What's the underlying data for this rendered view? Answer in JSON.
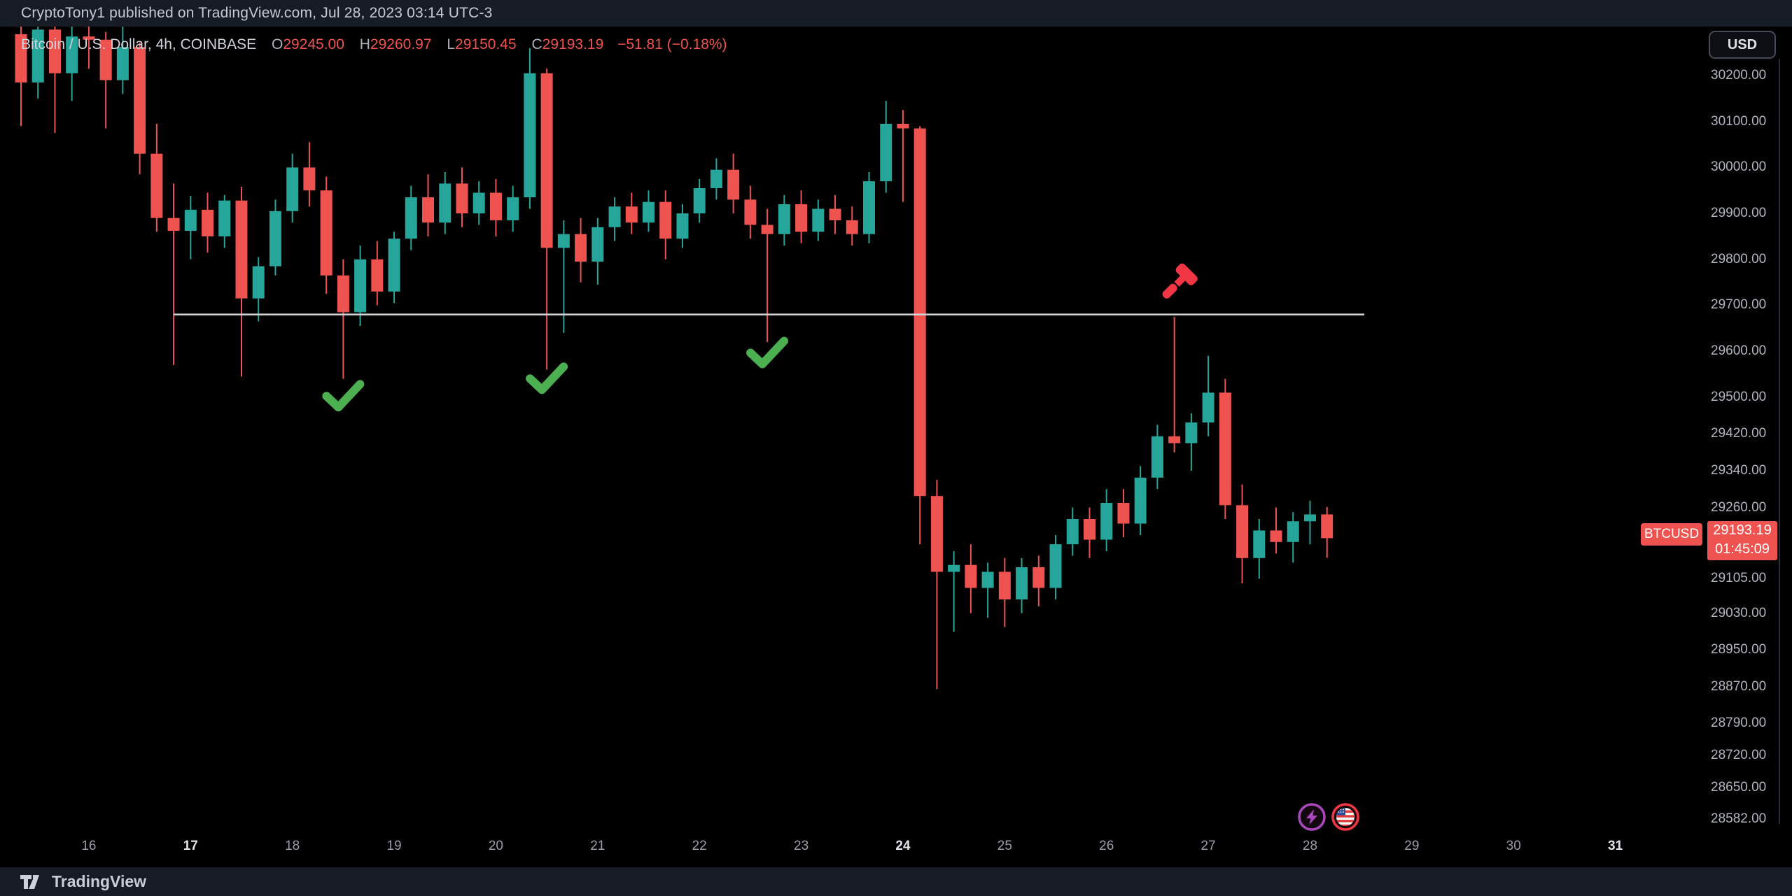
{
  "header": {
    "published_line": "CryptoTony1 published on TradingView.com, Jul 28, 2023 03:14 UTC-3"
  },
  "legend": {
    "symbol": "Bitcoin / U.S. Dollar",
    "interval": "4h",
    "exchange": "COINBASE",
    "symbol_line": "Bitcoin / U.S. Dollar, 4h, COINBASE",
    "open_label": "O",
    "open": "29245.00",
    "high_label": "H",
    "high": "29260.97",
    "low_label": "L",
    "low": "29150.45",
    "close_label": "C",
    "close": "29193.19",
    "change": "−51.81 (−0.18%)"
  },
  "price_axis": {
    "currency": "USD",
    "ticks": [
      30200.0,
      30100.0,
      30000.0,
      29900.0,
      29800.0,
      29700.0,
      29600.0,
      29500.0,
      29420.0,
      29340.0,
      29260.0,
      29105.0,
      29030.0,
      28950.0,
      28870.0,
      28790.0,
      28720.0,
      28650.0,
      28582.0
    ],
    "tick_format": "0.00",
    "last_price_tag": {
      "symbol": "BTCUSD",
      "price": "29193.19",
      "countdown": "01:45:09"
    }
  },
  "time_axis": {
    "ticks": [
      {
        "label": "16",
        "index": 4,
        "bold": false
      },
      {
        "label": "17",
        "index": 10,
        "bold": true
      },
      {
        "label": "18",
        "index": 16,
        "bold": false
      },
      {
        "label": "19",
        "index": 22,
        "bold": false
      },
      {
        "label": "20",
        "index": 28,
        "bold": false
      },
      {
        "label": "21",
        "index": 34,
        "bold": false
      },
      {
        "label": "22",
        "index": 40,
        "bold": false
      },
      {
        "label": "23",
        "index": 46,
        "bold": false
      },
      {
        "label": "24",
        "index": 52,
        "bold": true
      },
      {
        "label": "25",
        "index": 58,
        "bold": false
      },
      {
        "label": "26",
        "index": 64,
        "bold": false
      },
      {
        "label": "27",
        "index": 70,
        "bold": false
      },
      {
        "label": "28",
        "index": 76,
        "bold": false
      },
      {
        "label": "29",
        "index": 82,
        "bold": false
      },
      {
        "label": "30",
        "index": 88,
        "bold": false
      },
      {
        "label": "31",
        "index": 94,
        "bold": true
      }
    ],
    "events": [
      {
        "icon": "lightning-event-icon",
        "index": 76.1,
        "color": "#ab47bc"
      },
      {
        "icon": "us-flag-event-icon",
        "index": 78.1,
        "color": "#f23645"
      }
    ]
  },
  "footer": {
    "brand": "TradingView"
  },
  "colors": {
    "up": "#26a69a",
    "down": "#ef5350",
    "ray": "#d5d7da",
    "check": "#4caf50",
    "gavel": "#f23645",
    "background": "#000000",
    "bar_background": "#171b26",
    "axis_text": "#b2b5be",
    "tag_background": "#ef5350"
  },
  "chart_data": {
    "type": "candlestick",
    "title": "Bitcoin / U.S. Dollar",
    "exchange": "COINBASE",
    "interval": "4h",
    "date_range": "Jul 15 – Jul 28, 2023 (x-axis extends to Jul 31)",
    "price_range_visible": [
      28582,
      30330
    ],
    "grid": false,
    "ohlc_format": [
      "open",
      "high",
      "low",
      "close"
    ],
    "candles": [
      [
        30290,
        30325,
        30090,
        30185
      ],
      [
        30185,
        30330,
        30150,
        30300
      ],
      [
        30300,
        30315,
        30075,
        30205
      ],
      [
        30205,
        30330,
        30145,
        30285
      ],
      [
        30285,
        30315,
        30215,
        30278
      ],
      [
        30278,
        30295,
        30085,
        30190
      ],
      [
        30190,
        30310,
        30160,
        30262
      ],
      [
        30262,
        30272,
        29985,
        30030
      ],
      [
        30030,
        30095,
        29860,
        29890
      ],
      [
        29890,
        29965,
        29570,
        29862
      ],
      [
        29862,
        29938,
        29800,
        29908
      ],
      [
        29908,
        29945,
        29815,
        29850
      ],
      [
        29850,
        29940,
        29825,
        29928
      ],
      [
        29928,
        29958,
        29545,
        29715
      ],
      [
        29715,
        29805,
        29665,
        29785
      ],
      [
        29785,
        29930,
        29765,
        29905
      ],
      [
        29905,
        30030,
        29880,
        30000
      ],
      [
        30000,
        30055,
        29915,
        29950
      ],
      [
        29950,
        29980,
        29725,
        29765
      ],
      [
        29765,
        29800,
        29540,
        29685
      ],
      [
        29685,
        29830,
        29655,
        29800
      ],
      [
        29800,
        29840,
        29700,
        29730
      ],
      [
        29730,
        29860,
        29705,
        29845
      ],
      [
        29845,
        29960,
        29820,
        29935
      ],
      [
        29935,
        29985,
        29850,
        29880
      ],
      [
        29880,
        29990,
        29855,
        29965
      ],
      [
        29965,
        30000,
        29870,
        29900
      ],
      [
        29900,
        29970,
        29875,
        29945
      ],
      [
        29945,
        29975,
        29850,
        29885
      ],
      [
        29885,
        29960,
        29860,
        29935
      ],
      [
        29935,
        30260,
        29910,
        30205
      ],
      [
        30205,
        30215,
        29560,
        29825
      ],
      [
        29825,
        29885,
        29640,
        29855
      ],
      [
        29855,
        29890,
        29750,
        29795
      ],
      [
        29795,
        29890,
        29745,
        29870
      ],
      [
        29870,
        29935,
        29840,
        29915
      ],
      [
        29915,
        29945,
        29855,
        29880
      ],
      [
        29880,
        29950,
        29860,
        29925
      ],
      [
        29925,
        29950,
        29800,
        29845
      ],
      [
        29845,
        29920,
        29825,
        29900
      ],
      [
        29900,
        29975,
        29880,
        29955
      ],
      [
        29955,
        30020,
        29930,
        29995
      ],
      [
        29995,
        30030,
        29900,
        29930
      ],
      [
        29930,
        29960,
        29845,
        29875
      ],
      [
        29875,
        29910,
        29620,
        29855
      ],
      [
        29855,
        29940,
        29830,
        29920
      ],
      [
        29920,
        29950,
        29835,
        29860
      ],
      [
        29860,
        29930,
        29840,
        29910
      ],
      [
        29910,
        29940,
        29855,
        29885
      ],
      [
        29885,
        29915,
        29830,
        29855
      ],
      [
        29855,
        29990,
        29835,
        29970
      ],
      [
        29970,
        30145,
        29945,
        30095
      ],
      [
        30095,
        30125,
        29925,
        30085
      ],
      [
        30085,
        30090,
        29180,
        29285
      ],
      [
        29285,
        29320,
        28865,
        29120
      ],
      [
        29120,
        29165,
        28990,
        29135
      ],
      [
        29135,
        29180,
        29030,
        29085
      ],
      [
        29085,
        29140,
        29020,
        29120
      ],
      [
        29120,
        29150,
        29000,
        29060
      ],
      [
        29060,
        29150,
        29030,
        29130
      ],
      [
        29130,
        29155,
        29045,
        29085
      ],
      [
        29085,
        29200,
        29060,
        29180
      ],
      [
        29180,
        29260,
        29155,
        29235
      ],
      [
        29235,
        29260,
        29150,
        29190
      ],
      [
        29190,
        29300,
        29165,
        29270
      ],
      [
        29270,
        29300,
        29195,
        29225
      ],
      [
        29225,
        29350,
        29200,
        29325
      ],
      [
        29325,
        29440,
        29300,
        29415
      ],
      [
        29415,
        29675,
        29380,
        29400
      ],
      [
        29400,
        29465,
        29340,
        29445
      ],
      [
        29445,
        29590,
        29415,
        29510
      ],
      [
        29510,
        29540,
        29235,
        29265
      ],
      [
        29265,
        29310,
        29095,
        29150
      ],
      [
        29150,
        29235,
        29105,
        29210
      ],
      [
        29210,
        29260,
        29160,
        29185
      ],
      [
        29185,
        29250,
        29140,
        29230
      ],
      [
        29230,
        29275,
        29180,
        29245
      ],
      [
        29245,
        29260.97,
        29150.45,
        29193.19
      ]
    ],
    "horizontal_ray": {
      "price": 29680,
      "from_index": 9,
      "to_index": 79.2
    },
    "annotations": [
      {
        "type": "check-mark",
        "candle_index": 19,
        "price": 29504
      },
      {
        "type": "check-mark",
        "candle_index": 31,
        "price": 29542
      },
      {
        "type": "check-mark",
        "candle_index": 44,
        "price": 29598
      },
      {
        "type": "gavel",
        "candle_index": 68.2,
        "price": 29748
      }
    ],
    "legend_position": "top-left",
    "y_axis_side": "right"
  }
}
